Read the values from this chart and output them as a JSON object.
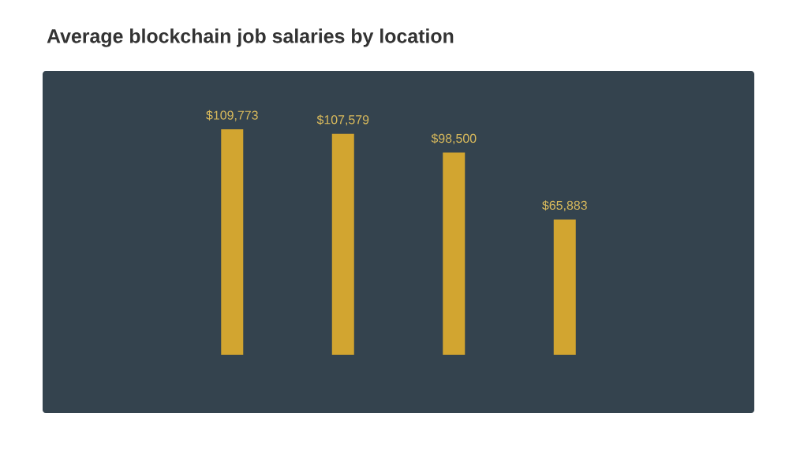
{
  "chart_data": {
    "type": "bar",
    "title": "Average blockchain job salaries by location",
    "categories": [
      null,
      null,
      null,
      null
    ],
    "values": [
      109773,
      107579,
      98500,
      65883
    ],
    "value_labels": [
      "$109,773",
      "$107,579",
      "$98,500",
      "$65,883"
    ],
    "color": "#d2a530"
  }
}
